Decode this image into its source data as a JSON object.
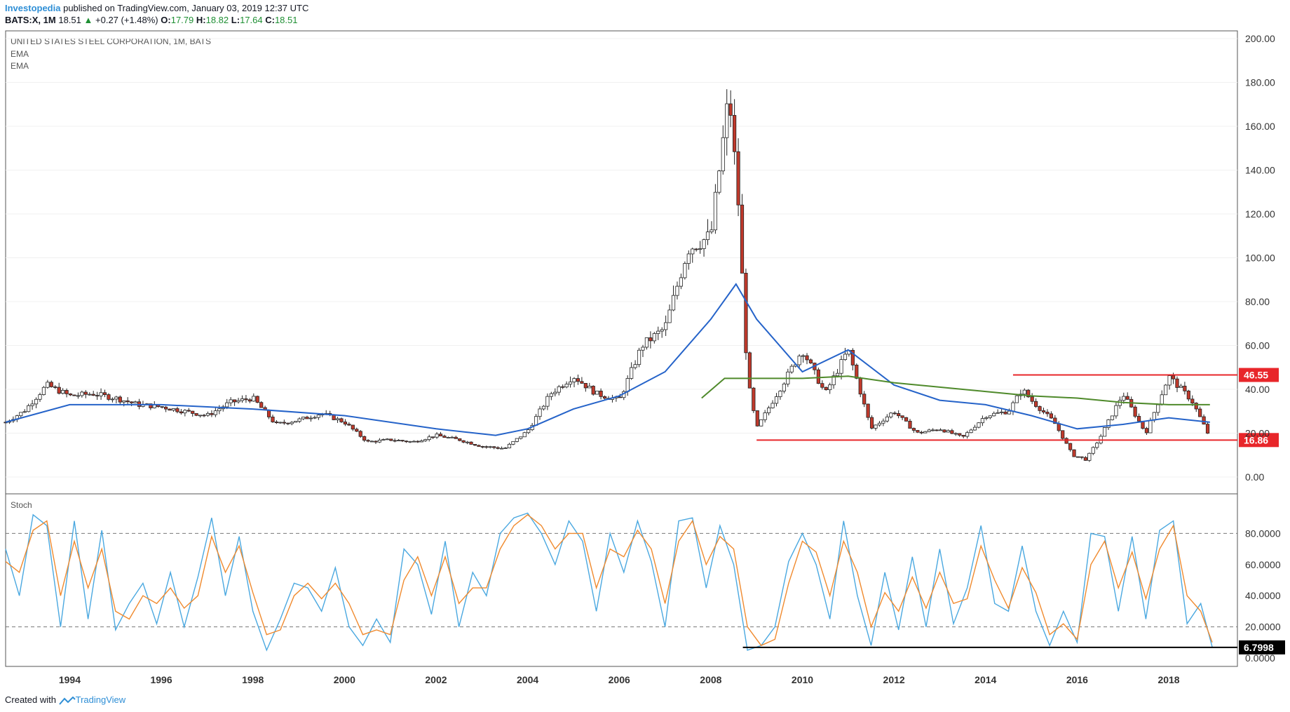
{
  "header": {
    "brand": "Investopedia",
    "published": "published on TradingView.com, January 03, 2019 12:37 UTC",
    "symbol": "BATS:X, 1M",
    "last": "18.51",
    "arrow": "▲",
    "change": "+0.27 (+1.48%)",
    "open_label": "O:",
    "open": "17.79",
    "high_label": "H:",
    "high": "18.82",
    "low_label": "L:",
    "low": "17.64",
    "close_label": "C:",
    "close": "18.51"
  },
  "footer": {
    "created_with": "Created with",
    "tradingview": "TradingView"
  },
  "colors": {
    "up_body": "#ffffff",
    "down_body": "#c0392b",
    "wick": "#222222",
    "ema_fast": "#2563c9",
    "ema_slow": "#4f8a2b",
    "stoch_k": "#4aa8e0",
    "stoch_d": "#f08a2e",
    "resistance": "#e8262a",
    "stoch_line": "#000000"
  },
  "chart_data": [
    {
      "type": "candlestick",
      "title": "UNITED STATES STEEL CORPORATION, 1M, BATS",
      "indicators": [
        "EMA",
        "EMA"
      ],
      "x_ticks": [
        "1994",
        "1996",
        "1998",
        "2000",
        "2002",
        "2004",
        "2006",
        "2008",
        "2010",
        "2012",
        "2014",
        "2016",
        "2018"
      ],
      "y_ticks": [
        "200.00",
        "180.00",
        "160.00",
        "140.00",
        "120.00",
        "100.00",
        "80.00",
        "60.00",
        "40.00",
        "20.00",
        "0.00"
      ],
      "ylim": [
        0,
        200
      ],
      "xlim": [
        1992.6,
        2019.5
      ],
      "series": [
        {
          "name": "",
          "note": "monthly closing prices (approximate, one value per quarter-year anchor)",
          "x": [
            1992.6,
            1993.0,
            1993.5,
            1994.0,
            1994.5,
            1995.0,
            1995.5,
            1996.0,
            1996.5,
            1997.0,
            1997.5,
            1998.0,
            1998.5,
            1999.0,
            1999.5,
            2000.0,
            2000.5,
            2001.0,
            2001.5,
            2002.0,
            2002.5,
            2003.0,
            2003.5,
            2004.0,
            2004.5,
            2005.0,
            2005.5,
            2006.0,
            2006.5,
            2007.0,
            2007.5,
            2008.0,
            2008.4,
            2008.6,
            2008.8,
            2009.0,
            2009.5,
            2010.0,
            2010.5,
            2011.0,
            2011.5,
            2012.0,
            2012.5,
            2013.0,
            2013.5,
            2014.0,
            2014.5,
            2014.8,
            2015.0,
            2015.5,
            2015.9,
            2016.2,
            2016.5,
            2017.0,
            2017.5,
            2018.0,
            2018.5,
            2018.9
          ],
          "close": [
            25,
            30,
            42,
            37,
            38,
            36,
            33,
            32,
            30,
            28,
            34,
            36,
            24,
            26,
            29,
            25,
            16,
            17,
            16,
            19,
            17,
            14,
            13,
            21,
            38,
            46,
            38,
            35,
            60,
            68,
            104,
            110,
            175,
            125,
            45,
            22,
            40,
            58,
            38,
            58,
            22,
            30,
            20,
            22,
            18,
            28,
            30,
            40,
            35,
            25,
            10,
            8,
            18,
            38,
            20,
            46,
            35,
            18
          ],
          "color": "#222222"
        }
      ],
      "ema_fast": {
        "x": [
          1992.6,
          1994,
          1996,
          1998,
          2000,
          2002,
          2003.3,
          2004,
          2005,
          2006,
          2007,
          2008,
          2008.55,
          2009,
          2010,
          2011,
          2012,
          2013,
          2014,
          2015,
          2016,
          2017,
          2018,
          2018.9
        ],
        "y": [
          25,
          33,
          33,
          31,
          28,
          22,
          19,
          22,
          31,
          37,
          48,
          72,
          88,
          72,
          48,
          58,
          42,
          35,
          33,
          28,
          22,
          24,
          27,
          25
        ]
      },
      "ema_slow": {
        "x": [
          2007.8,
          2008.3,
          2009,
          2010,
          2011,
          2012,
          2013,
          2014,
          2015,
          2016,
          2017,
          2018,
          2018.9
        ],
        "y": [
          36,
          45,
          45,
          45,
          46,
          43,
          41,
          39,
          37,
          36,
          34,
          33,
          33
        ]
      },
      "levels": [
        {
          "label": "46.55",
          "value": 46.55,
          "from": 2014.6,
          "color": "#e8262a"
        },
        {
          "label": "16.86",
          "value": 16.86,
          "from": 2009.0,
          "color": "#e8262a"
        }
      ]
    },
    {
      "type": "line",
      "title": "Stoch",
      "y_ticks": [
        "80.0000",
        "60.0000",
        "40.0000",
        "20.0000",
        "0.0000"
      ],
      "ylim": [
        0,
        100
      ],
      "reference_lines": [
        80,
        20
      ],
      "x": [
        1992.6,
        1992.9,
        1993.2,
        1993.5,
        1993.8,
        1994.1,
        1994.4,
        1994.7,
        1995.0,
        1995.3,
        1995.6,
        1995.9,
        1996.2,
        1996.5,
        1996.8,
        1997.1,
        1997.4,
        1997.7,
        1998.0,
        1998.3,
        1998.6,
        1998.9,
        1999.2,
        1999.5,
        1999.8,
        2000.1,
        2000.4,
        2000.7,
        2001.0,
        2001.3,
        2001.6,
        2001.9,
        2002.2,
        2002.5,
        2002.8,
        2003.1,
        2003.4,
        2003.7,
        2004.0,
        2004.3,
        2004.6,
        2004.9,
        2005.2,
        2005.5,
        2005.8,
        2006.1,
        2006.4,
        2006.7,
        2007.0,
        2007.3,
        2007.6,
        2007.9,
        2008.2,
        2008.5,
        2008.8,
        2009.1,
        2009.4,
        2009.7,
        2010.0,
        2010.3,
        2010.6,
        2010.9,
        2011.2,
        2011.5,
        2011.8,
        2012.1,
        2012.4,
        2012.7,
        2013.0,
        2013.3,
        2013.6,
        2013.9,
        2014.2,
        2014.5,
        2014.8,
        2015.1,
        2015.4,
        2015.7,
        2016.0,
        2016.3,
        2016.6,
        2016.9,
        2017.2,
        2017.5,
        2017.8,
        2018.1,
        2018.4,
        2018.7,
        2018.95
      ],
      "series": [
        {
          "name": "",
          "color": "#4aa8e0",
          "values": [
            70,
            40,
            92,
            85,
            20,
            88,
            25,
            82,
            18,
            35,
            48,
            22,
            55,
            20,
            52,
            90,
            40,
            78,
            30,
            5,
            25,
            48,
            45,
            30,
            58,
            20,
            8,
            25,
            10,
            70,
            60,
            28,
            75,
            20,
            55,
            40,
            80,
            90,
            93,
            80,
            60,
            88,
            75,
            30,
            80,
            55,
            88,
            62,
            20,
            88,
            90,
            45,
            85,
            60,
            5,
            8,
            20,
            62,
            80,
            60,
            25,
            88,
            40,
            8,
            55,
            18,
            65,
            20,
            70,
            22,
            45,
            85,
            35,
            30,
            72,
            30,
            8,
            30,
            10,
            80,
            78,
            30,
            78,
            25,
            82,
            88,
            22,
            35,
            7
          ]
        },
        {
          "name": "",
          "color": "#f08a2e",
          "values": [
            62,
            55,
            82,
            88,
            40,
            75,
            45,
            70,
            30,
            25,
            40,
            35,
            45,
            32,
            40,
            78,
            55,
            72,
            42,
            15,
            18,
            40,
            48,
            38,
            48,
            35,
            15,
            18,
            15,
            50,
            65,
            40,
            65,
            35,
            45,
            45,
            70,
            85,
            92,
            85,
            70,
            80,
            80,
            45,
            70,
            65,
            82,
            70,
            35,
            75,
            88,
            60,
            78,
            70,
            20,
            8,
            12,
            48,
            75,
            68,
            40,
            75,
            55,
            20,
            42,
            30,
            52,
            32,
            55,
            35,
            38,
            72,
            50,
            32,
            58,
            42,
            15,
            22,
            12,
            60,
            75,
            45,
            68,
            38,
            70,
            85,
            40,
            30,
            10
          ]
        }
      ],
      "levels": [
        {
          "label": "6.7998",
          "value": 6.7998,
          "from": 2008.7,
          "color": "#000000"
        }
      ]
    }
  ]
}
